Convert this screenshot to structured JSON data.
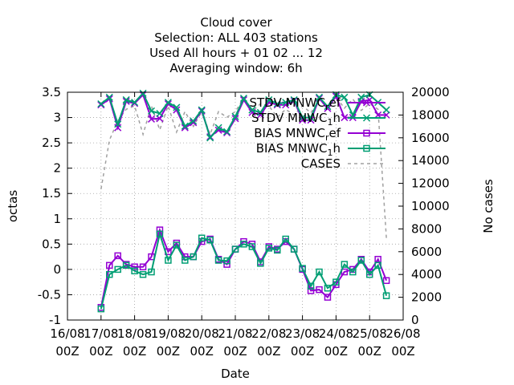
{
  "chart_data": {
    "type": "line",
    "title_lines": [
      "Cloud cover",
      "Selection: ALL    403 stations",
      "Used  All hours + 01 02 ... 12",
      "Averaging window:  6h"
    ],
    "xlabel": "Date",
    "ylabel": "octas",
    "y2label": "No cases",
    "ylim": [
      -1,
      3.5
    ],
    "y2lim": [
      0,
      20000
    ],
    "yticks": [
      "-1",
      "-0.5",
      "0",
      "0.5",
      "1",
      "1.5",
      "2",
      "2.5",
      "3",
      "3.5"
    ],
    "y2ticks": [
      "0",
      "2000",
      "4000",
      "6000",
      "8000",
      "10000",
      "12000",
      "14000",
      "16000",
      "18000",
      "20000"
    ],
    "xlim": [
      0,
      240
    ],
    "xticks": [
      [
        "16/08",
        "00Z"
      ],
      [
        "17/08",
        "00Z"
      ],
      [
        "18/08",
        "00Z"
      ],
      [
        "19/08",
        "00Z"
      ],
      [
        "20/08",
        "00Z"
      ],
      [
        "21/08",
        "00Z"
      ],
      [
        "22/08",
        "00Z"
      ],
      [
        "23/08",
        "00Z"
      ],
      [
        "24/08",
        "00Z"
      ],
      [
        "25/08",
        "00Z"
      ],
      [
        "26/08",
        "00Z"
      ]
    ],
    "grid": true,
    "legend_position": "top-right",
    "x_hours": [
      24,
      30,
      36,
      42,
      48,
      54,
      60,
      66,
      72,
      78,
      84,
      90,
      96,
      102,
      108,
      114,
      120,
      126,
      132,
      138,
      144,
      150,
      156,
      162,
      168,
      174,
      180,
      186,
      192,
      198,
      204,
      210,
      216,
      222,
      228
    ],
    "series": [
      {
        "name": "STDV MNWC_ref",
        "axis": "y1",
        "color": "#9400d3",
        "marker": "x",
        "dash": false,
        "values": [
          3.25,
          3.37,
          2.8,
          3.32,
          3.28,
          3.45,
          2.97,
          2.98,
          3.27,
          3.15,
          2.8,
          2.9,
          3.13,
          2.62,
          2.75,
          2.7,
          2.98,
          3.35,
          3.1,
          3.05,
          3.3,
          3.25,
          3.25,
          3.33,
          2.95,
          2.95,
          3.38,
          3.18,
          3.42,
          3.0,
          3.0,
          3.32,
          3.35,
          3.05,
          3.05
        ]
      },
      {
        "name": "STDV MNWC_1h",
        "axis": "y1",
        "color": "#009e73",
        "marker": "x",
        "dash": false,
        "values": [
          3.27,
          3.4,
          2.87,
          3.35,
          3.3,
          3.48,
          3.13,
          3.08,
          3.3,
          3.2,
          2.83,
          2.93,
          3.15,
          2.6,
          2.8,
          2.72,
          3.02,
          3.38,
          3.15,
          3.1,
          3.35,
          3.27,
          3.3,
          3.35,
          3.0,
          3.0,
          3.4,
          3.22,
          3.45,
          3.4,
          3.05,
          3.4,
          3.45,
          3.3,
          3.15
        ]
      },
      {
        "name": "BIAS MNWC_ref",
        "axis": "y1",
        "color": "#9400d3",
        "marker": "square",
        "dash": false,
        "values": [
          -0.75,
          0.08,
          0.27,
          0.1,
          0.05,
          0.05,
          0.25,
          0.78,
          0.35,
          0.52,
          0.25,
          0.25,
          0.55,
          0.6,
          0.2,
          0.1,
          0.4,
          0.55,
          0.5,
          0.15,
          0.45,
          0.4,
          0.55,
          0.4,
          0.0,
          -0.42,
          -0.4,
          -0.55,
          -0.3,
          -0.05,
          0.0,
          0.2,
          -0.05,
          0.2,
          -0.22
        ]
      },
      {
        "name": "BIAS MNWC_1h",
        "axis": "y1",
        "color": "#009e73",
        "marker": "square",
        "dash": false,
        "values": [
          -0.78,
          -0.1,
          0.0,
          0.08,
          -0.03,
          -0.1,
          -0.05,
          0.7,
          0.18,
          0.48,
          0.18,
          0.25,
          0.62,
          0.58,
          0.18,
          0.17,
          0.4,
          0.5,
          0.45,
          0.12,
          0.42,
          0.38,
          0.6,
          0.4,
          0.02,
          -0.33,
          -0.05,
          -0.37,
          -0.25,
          0.1,
          -0.05,
          0.18,
          -0.1,
          0.08,
          -0.52
        ]
      },
      {
        "name": "CASES",
        "axis": "y2",
        "color": "#a0a0a0",
        "marker": "none",
        "dash": true,
        "values": [
          11500,
          15800,
          17500,
          18500,
          18800,
          16300,
          18800,
          16700,
          18800,
          16500,
          18300,
          17000,
          18300,
          16300,
          18300,
          17800,
          18300,
          19500,
          18300,
          19000,
          18800,
          17800,
          18500,
          18000,
          18800,
          18200,
          19300,
          18800,
          19600,
          18600,
          19400,
          18400,
          19000,
          18500,
          7200
        ]
      }
    ],
    "legend": [
      {
        "label": "STDV MNWC",
        "sub": "r",
        "rest": "ef",
        "series": 0
      },
      {
        "label": "STDV MNWC",
        "sub": "1",
        "rest": "h",
        "series": 1
      },
      {
        "label": "BIAS MNWC",
        "sub": "r",
        "rest": "ef",
        "series": 2
      },
      {
        "label": "BIAS MNWC",
        "sub": "1",
        "rest": "h",
        "series": 3
      },
      {
        "label": "CASES",
        "sub": "",
        "rest": "",
        "series": 4
      }
    ]
  }
}
